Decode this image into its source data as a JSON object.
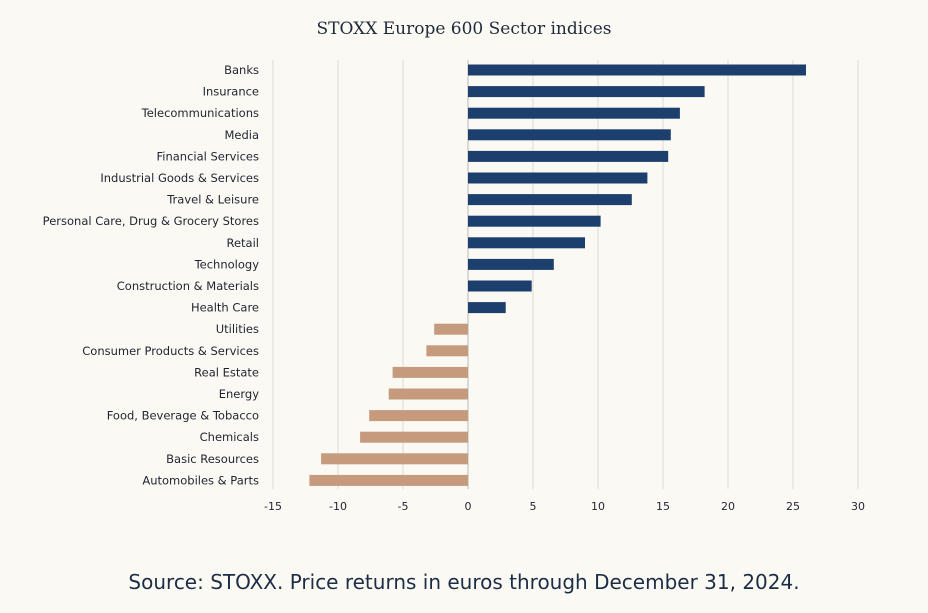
{
  "chart_data": {
    "type": "bar",
    "orientation": "horizontal",
    "title": "STOXX Europe 600 Sector indices",
    "xlabel": "",
    "ylabel": "",
    "xlim": [
      -15,
      30
    ],
    "ticks": [
      -15,
      -10,
      -5,
      0,
      5,
      10,
      15,
      20,
      25,
      30
    ],
    "grid": true,
    "colors": {
      "positive": "#1c3f6e",
      "negative": "#c59a7d"
    },
    "categories": [
      "Banks",
      "Insurance",
      "Telecommunications",
      "Media",
      "Financial Services",
      "Industrial Goods & Services",
      "Travel & Leisure",
      "Personal Care, Drug & Grocery Stores",
      "Retail",
      "Technology",
      "Construction & Materials",
      "Health Care",
      "Utilities",
      "Consumer Products & Services",
      "Real Estate",
      "Energy",
      "Food, Beverage & Tobacco",
      "Chemicals",
      "Basic Resources",
      "Automobiles & Parts"
    ],
    "values": [
      26.0,
      18.2,
      16.3,
      15.6,
      15.4,
      13.8,
      12.6,
      10.2,
      9.0,
      6.6,
      4.9,
      2.9,
      -2.6,
      -3.2,
      -5.8,
      -6.1,
      -7.6,
      -8.3,
      -11.3,
      -12.2
    ]
  },
  "footer": {
    "source": "Source: STOXX. Price returns in euros through December 31, 2024."
  }
}
